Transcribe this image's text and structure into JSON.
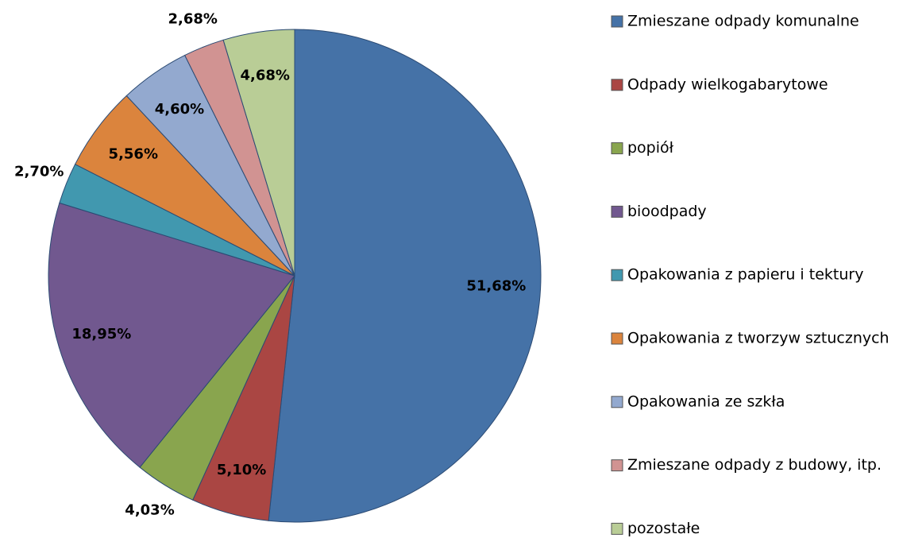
{
  "chart_data": {
    "type": "pie",
    "categories": [
      "Zmieszane odpady komunalne",
      "Odpady wielkogabarytowe",
      "popiół",
      "bioodpady",
      "Opakowania z papieru i tektury",
      "Opakowania z tworzyw sztucznych",
      "Opakowania ze szkła",
      "Zmieszane odpady z budowy, itp.",
      "pozostałe"
    ],
    "values": [
      51.68,
      5.1,
      4.03,
      18.95,
      2.7,
      5.56,
      4.6,
      2.68,
      4.68
    ],
    "value_labels": [
      "51,68%",
      "5,10%",
      "4,03%",
      "18,95%",
      "2,70%",
      "5,56%",
      "4,60%",
      "2,68%",
      "4,68%"
    ],
    "colors": [
      "#4572a7",
      "#aa4643",
      "#89a54e",
      "#71588f",
      "#4198af",
      "#db843d",
      "#93a9cf",
      "#d19392",
      "#b9cd96"
    ],
    "legend": "right"
  }
}
